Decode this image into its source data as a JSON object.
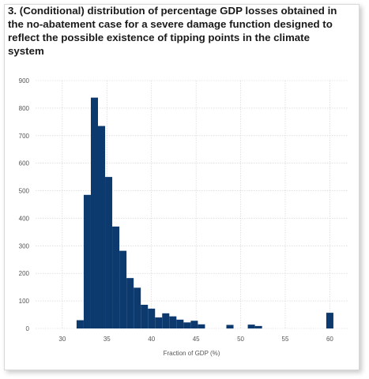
{
  "chart_data": {
    "type": "bar",
    "title": "3. (Conditional) distribution of percentage GDP losses obtained in the no-abatement case for a severe damage function designed to reflect the possible existence of tipping points in the climate system",
    "xlabel": "Fraction of GDP (%)",
    "ylabel": "",
    "xlim": [
      27,
      62
    ],
    "ylim": [
      0,
      900
    ],
    "xticks": [
      30,
      35,
      40,
      45,
      50,
      55,
      60
    ],
    "yticks": [
      0,
      100,
      200,
      300,
      400,
      500,
      600,
      700,
      800,
      900
    ],
    "grid": true,
    "bin_width": 0.8,
    "bar_color": "#0d3a6e",
    "bins": [
      {
        "x": 31.6,
        "value": 30
      },
      {
        "x": 32.4,
        "value": 485
      },
      {
        "x": 33.2,
        "value": 838
      },
      {
        "x": 34.0,
        "value": 735
      },
      {
        "x": 34.8,
        "value": 550
      },
      {
        "x": 35.6,
        "value": 370
      },
      {
        "x": 36.4,
        "value": 282
      },
      {
        "x": 37.2,
        "value": 183
      },
      {
        "x": 38.0,
        "value": 148
      },
      {
        "x": 38.8,
        "value": 86
      },
      {
        "x": 39.6,
        "value": 72
      },
      {
        "x": 40.4,
        "value": 40
      },
      {
        "x": 41.2,
        "value": 55
      },
      {
        "x": 42.0,
        "value": 44
      },
      {
        "x": 42.8,
        "value": 32
      },
      {
        "x": 43.6,
        "value": 22
      },
      {
        "x": 44.4,
        "value": 28
      },
      {
        "x": 45.2,
        "value": 15
      },
      {
        "x": 48.4,
        "value": 13
      },
      {
        "x": 50.8,
        "value": 14
      },
      {
        "x": 51.6,
        "value": 9
      },
      {
        "x": 59.6,
        "value": 57
      }
    ]
  }
}
